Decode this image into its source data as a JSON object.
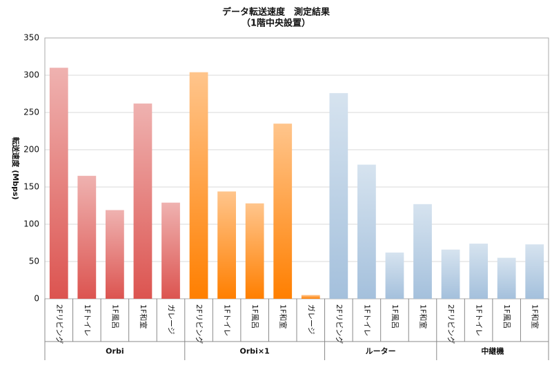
{
  "chart_data": {
    "type": "grouped-bar",
    "title": "データ転送速度　測定結果",
    "subtitle": "（1階中央設置）",
    "y_label": "転送速度 (Mbps)",
    "ylim": [
      0,
      350
    ],
    "yticks": [
      0,
      50,
      100,
      150,
      200,
      250,
      300,
      350
    ],
    "grid": true,
    "groups": [
      {
        "name": "Orbi",
        "color": "#dc5450",
        "categories": [
          "2Fリビング",
          "1Fトイレ",
          "1F風呂",
          "1F和室",
          "ガレージ"
        ],
        "values": [
          310,
          165,
          119,
          262,
          129
        ]
      },
      {
        "name": "Orbi×1",
        "color": "#ff7f00",
        "categories": [
          "2Fリビング",
          "1Fトイレ",
          "1F風呂",
          "1F和室",
          "ガレージ"
        ],
        "values": [
          304,
          144,
          128,
          235,
          5
        ]
      },
      {
        "name": "ルーター",
        "color": "#a4c0dc",
        "categories": [
          "2Fリビング",
          "1Fトイレ",
          "1F風呂",
          "1F和室"
        ],
        "values": [
          276,
          180,
          62,
          127
        ]
      },
      {
        "name": "中継機",
        "color": "#a4c0dc",
        "categories": [
          "2Fリビング",
          "1Fトイレ",
          "1F風呂",
          "1F和室"
        ],
        "values": [
          66,
          74,
          55,
          73
        ]
      }
    ]
  }
}
